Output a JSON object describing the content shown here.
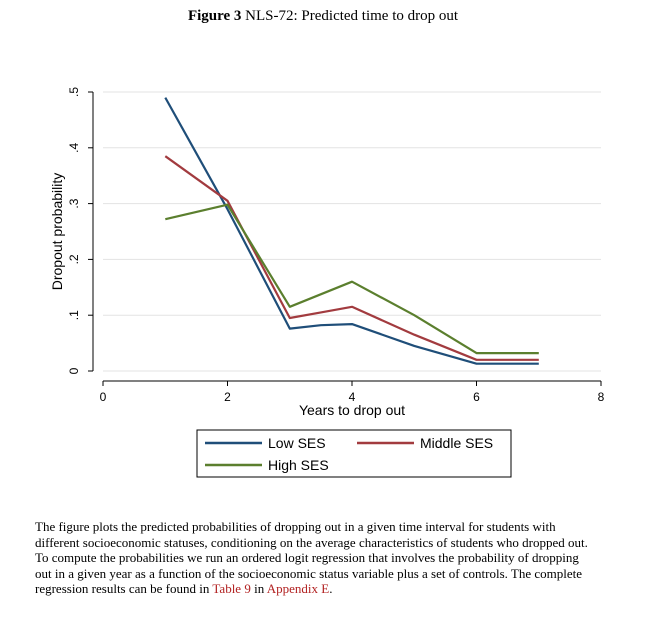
{
  "figure": {
    "label": "Figure 3",
    "title": "NLS-72: Predicted time to drop out"
  },
  "chart_data": {
    "type": "line",
    "title": "Figure 3 NLS-72: Predicted time to drop out",
    "xlabel": "Years to drop out",
    "ylabel": "Dropout probability",
    "xlim": [
      0,
      8
    ],
    "ylim": [
      0,
      0.5
    ],
    "xticks": [
      "0",
      "2",
      "4",
      "6",
      "8"
    ],
    "yticks": [
      "0",
      ".1",
      ".2",
      ".3",
      ".4",
      ".5"
    ],
    "grid": "horizontal",
    "legend_position": "bottom",
    "series": [
      {
        "name": "Low SES",
        "color": "#1f4e79",
        "x": [
          1,
          2,
          3,
          3.5,
          4,
          5,
          6,
          7
        ],
        "y": [
          0.49,
          0.29,
          0.076,
          0.082,
          0.084,
          0.045,
          0.013,
          0.013
        ]
      },
      {
        "name": "Middle SES",
        "color": "#a23b3f",
        "x": [
          1,
          2,
          3,
          3.5,
          4,
          5,
          6,
          7
        ],
        "y": [
          0.385,
          0.305,
          0.095,
          0.105,
          0.115,
          0.065,
          0.02,
          0.02
        ]
      },
      {
        "name": "High SES",
        "color": "#5b7f2e",
        "x": [
          1,
          2,
          3,
          4,
          5,
          6,
          7
        ],
        "y": [
          0.272,
          0.298,
          0.115,
          0.16,
          0.1,
          0.032,
          0.032
        ]
      }
    ]
  },
  "caption": {
    "text": "The figure plots the predicted probabilities of dropping out in a given time interval for students with different socioeconomic statuses, conditioning on the average characteristics of students who dropped out.  To compute the probabilities we run an ordered logit regression that involves the probability of dropping out in a given year as a function of the socioeconomic status variable plus a set of controls. The complete regression results can be found in ",
    "table_ref": "Table 9",
    "mid": " in ",
    "appendix_ref": "Appendix E",
    "end": "."
  }
}
